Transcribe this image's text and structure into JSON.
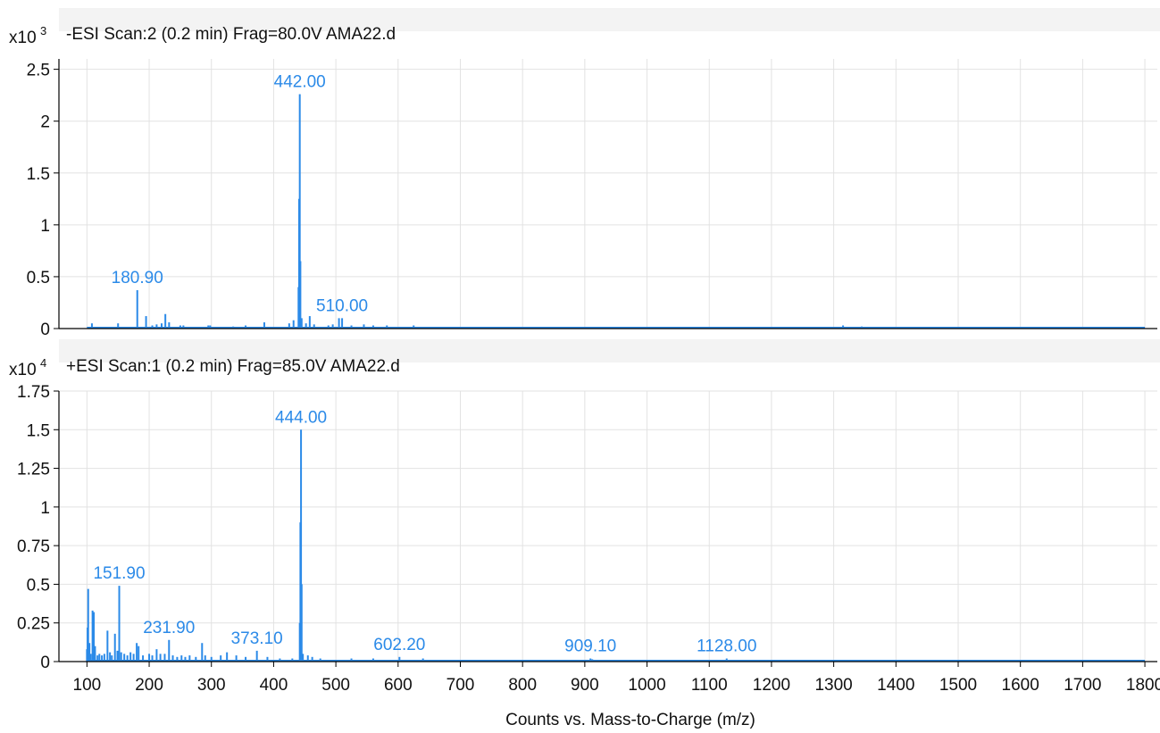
{
  "colors": {
    "spectrum": "#2b8ae8",
    "peak_label": "#2b8ae8",
    "grid": "#e2e2e2",
    "band": "#f3f3f3"
  },
  "chart_data": [
    {
      "type": "line",
      "title": "-ESI Scan:2 (0.2 min) Frag=80.0V AMA22.d",
      "scale_label": "x10",
      "scale_exponent": "3",
      "xlabel": "",
      "ylabel": "",
      "xlim": [
        55,
        1820
      ],
      "ylim": [
        0,
        2.6
      ],
      "yticks": [
        0,
        0.5,
        1,
        1.5,
        2,
        2.5
      ],
      "yticklabels": [
        "0",
        "0.5",
        "1",
        "1.5",
        "2",
        "2.5"
      ],
      "grid": true,
      "series": [
        {
          "peaks": [
            [
              108,
              0.05
            ],
            [
              150,
              0.05
            ],
            [
              180.9,
              0.37
            ],
            [
              195,
              0.12
            ],
            [
              205,
              0.03
            ],
            [
              212,
              0.04
            ],
            [
              220,
              0.05
            ],
            [
              226,
              0.14
            ],
            [
              232,
              0.06
            ],
            [
              250,
              0.03
            ],
            [
              255,
              0.03
            ],
            [
              295,
              0.03
            ],
            [
              298,
              0.03
            ],
            [
              335,
              0.02
            ],
            [
              355,
              0.03
            ],
            [
              385,
              0.06
            ],
            [
              425,
              0.05
            ],
            [
              432,
              0.08
            ],
            [
              440,
              0.4
            ],
            [
              441,
              1.25
            ],
            [
              442,
              2.26
            ],
            [
              443,
              0.65
            ],
            [
              445,
              0.1
            ],
            [
              452,
              0.05
            ],
            [
              458,
              0.12
            ],
            [
              465,
              0.04
            ],
            [
              488,
              0.03
            ],
            [
              495,
              0.04
            ],
            [
              505,
              0.1
            ],
            [
              510,
              0.1
            ],
            [
              525,
              0.03
            ],
            [
              545,
              0.04
            ],
            [
              560,
              0.03
            ],
            [
              582,
              0.03
            ],
            [
              625,
              0.03
            ],
            [
              1315,
              0.03
            ],
            [
              1345,
              0.02
            ]
          ]
        }
      ],
      "peak_labels": [
        {
          "x": 180.9,
          "y": 0.37,
          "text": "180.90"
        },
        {
          "x": 442.0,
          "y": 2.26,
          "text": "442.00"
        },
        {
          "x": 510.0,
          "y": 0.1,
          "text": "510.00"
        }
      ]
    },
    {
      "type": "line",
      "title": "+ESI Scan:1 (0.2 min) Frag=85.0V AMA22.d",
      "scale_label": "x10",
      "scale_exponent": "4",
      "xlabel": "Counts vs. Mass-to-Charge (m/z)",
      "ylabel": "",
      "xlim": [
        55,
        1820
      ],
      "ylim": [
        0,
        1.75
      ],
      "yticks": [
        0,
        0.25,
        0.5,
        0.75,
        1,
        1.25,
        1.5,
        1.75
      ],
      "yticklabels": [
        "0",
        "0.25",
        "0.5",
        "0.75",
        "1",
        "1.25",
        "1.5",
        "1.75"
      ],
      "xticks": [
        100,
        200,
        300,
        400,
        500,
        600,
        700,
        800,
        900,
        1000,
        1100,
        1200,
        1300,
        1400,
        1500,
        1600,
        1700,
        1800
      ],
      "xticklabels": [
        "100",
        "200",
        "300",
        "400",
        "500",
        "600",
        "700",
        "800",
        "900",
        "1000",
        "1100",
        "1200",
        "1300",
        "1400",
        "1500",
        "1600",
        "1700",
        "1800"
      ],
      "grid": true,
      "series": [
        {
          "peaks": [
            [
              100,
              0.08
            ],
            [
              101,
              0.22
            ],
            [
              102,
              0.47
            ],
            [
              104,
              0.12
            ],
            [
              106,
              0.05
            ],
            [
              109,
              0.33
            ],
            [
              111,
              0.32
            ],
            [
              113,
              0.1
            ],
            [
              117,
              0.04
            ],
            [
              120,
              0.05
            ],
            [
              124,
              0.04
            ],
            [
              128,
              0.05
            ],
            [
              133,
              0.2
            ],
            [
              137,
              0.06
            ],
            [
              140,
              0.04
            ],
            [
              145,
              0.18
            ],
            [
              149,
              0.07
            ],
            [
              151.9,
              0.49
            ],
            [
              155,
              0.06
            ],
            [
              160,
              0.05
            ],
            [
              165,
              0.04
            ],
            [
              170,
              0.06
            ],
            [
              175,
              0.05
            ],
            [
              180,
              0.12
            ],
            [
              183,
              0.1
            ],
            [
              190,
              0.04
            ],
            [
              200,
              0.05
            ],
            [
              205,
              0.04
            ],
            [
              212,
              0.08
            ],
            [
              218,
              0.05
            ],
            [
              225,
              0.05
            ],
            [
              231.9,
              0.14
            ],
            [
              238,
              0.04
            ],
            [
              245,
              0.03
            ],
            [
              252,
              0.04
            ],
            [
              258,
              0.03
            ],
            [
              265,
              0.04
            ],
            [
              275,
              0.03
            ],
            [
              285,
              0.12
            ],
            [
              290,
              0.04
            ],
            [
              300,
              0.03
            ],
            [
              315,
              0.04
            ],
            [
              325,
              0.06
            ],
            [
              340,
              0.04
            ],
            [
              355,
              0.03
            ],
            [
              373.1,
              0.07
            ],
            [
              390,
              0.03
            ],
            [
              410,
              0.02
            ],
            [
              430,
              0.02
            ],
            [
              442,
              0.25
            ],
            [
              443,
              0.9
            ],
            [
              444,
              1.5
            ],
            [
              445,
              0.5
            ],
            [
              447,
              0.05
            ],
            [
              455,
              0.04
            ],
            [
              462,
              0.03
            ],
            [
              475,
              0.02
            ],
            [
              525,
              0.02
            ],
            [
              560,
              0.02
            ],
            [
              580,
              0.01
            ],
            [
              602.2,
              0.03
            ],
            [
              640,
              0.02
            ],
            [
              660,
              0.01
            ],
            [
              680,
              0.01
            ],
            [
              700,
              0.01
            ],
            [
              720,
              0.01
            ],
            [
              800,
              0.01
            ],
            [
              830,
              0.01
            ],
            [
              909.1,
              0.02
            ],
            [
              912,
              0.015
            ],
            [
              1128,
              0.02
            ]
          ]
        }
      ],
      "peak_labels": [
        {
          "x": 151.9,
          "y": 0.49,
          "text": "151.90"
        },
        {
          "x": 231.9,
          "y": 0.14,
          "text": "231.90"
        },
        {
          "x": 373.1,
          "y": 0.07,
          "text": "373.10"
        },
        {
          "x": 444.0,
          "y": 1.5,
          "text": "444.00"
        },
        {
          "x": 602.2,
          "y": 0.03,
          "text": "602.20"
        },
        {
          "x": 909.1,
          "y": 0.02,
          "text": "909.10"
        },
        {
          "x": 1128.0,
          "y": 0.02,
          "text": "1128.00"
        }
      ]
    }
  ]
}
